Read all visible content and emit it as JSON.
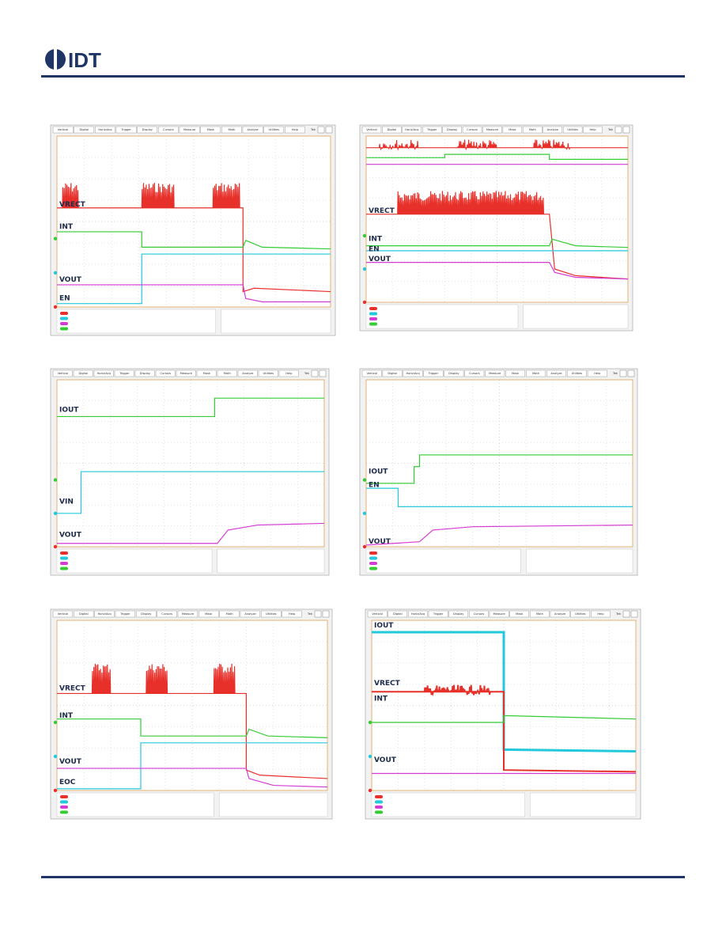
{
  "header": {
    "logo": "IDT"
  },
  "menu": [
    "Vertical",
    "Digital",
    "Horiz/Acq",
    "Trigger",
    "Display",
    "Cursors",
    "Measure",
    "Mask",
    "Math",
    "Analyze",
    "Utilities",
    "Help"
  ],
  "tek": "Tek",
  "scopes": [
    {
      "labels": [
        "VRECT",
        "INT",
        "VOUT",
        "EN"
      ]
    },
    {
      "labels": [
        "VRECT",
        "INT",
        "EN",
        "VOUT"
      ]
    },
    {
      "labels": [
        "IOUT",
        "VIN",
        "VOUT"
      ]
    },
    {
      "labels": [
        "IOUT",
        "EN",
        "VOUT"
      ]
    },
    {
      "labels": [
        "VRECT",
        "INT",
        "VOUT",
        "EOC"
      ]
    },
    {
      "labels": [
        "IOUT",
        "VRECT",
        "INT",
        "VOUT"
      ]
    }
  ]
}
